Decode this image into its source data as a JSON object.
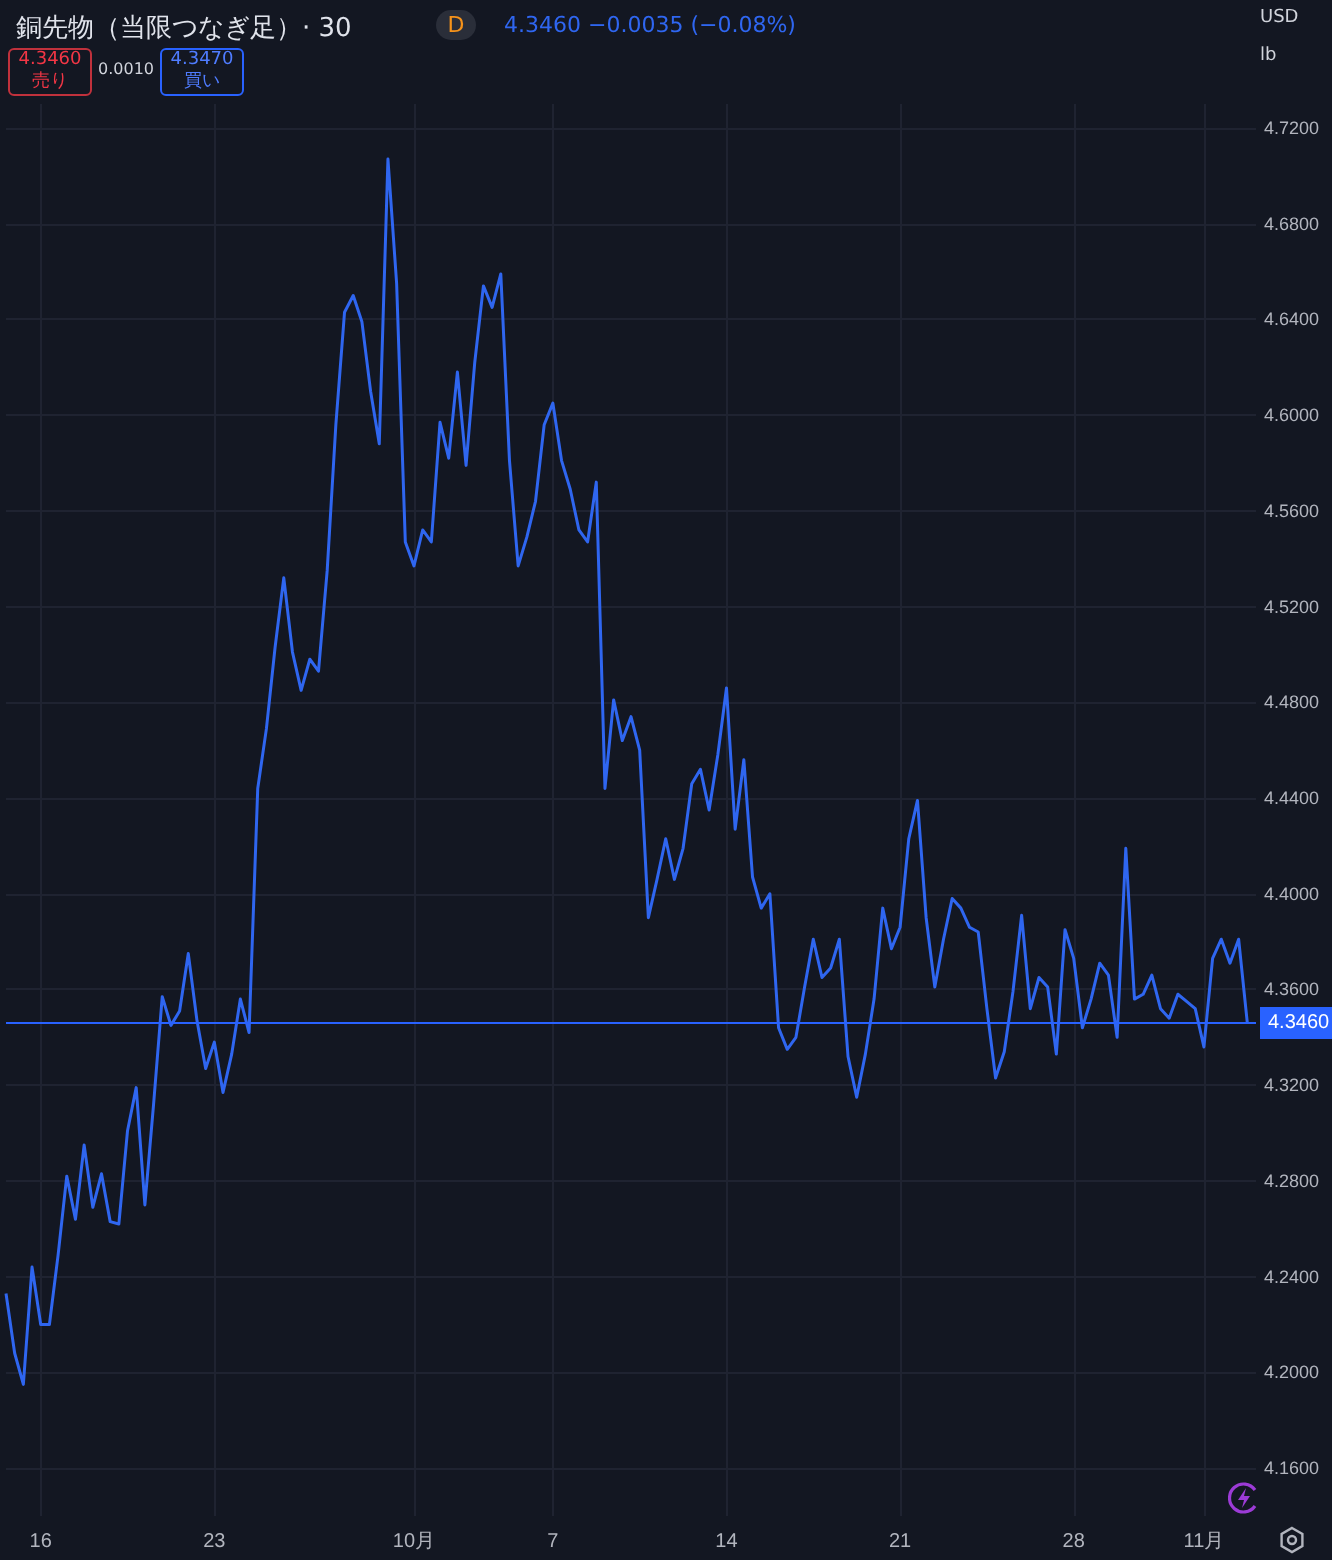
{
  "chart_data": {
    "type": "line",
    "title": "銅先物（当限つなぎ足）· 30",
    "subtitle": "4.3460 −0.0035 (−0.08%)",
    "annotations": [
      "4.3460 売り",
      "0.0010",
      "4.3470 買い",
      "USD",
      "lb",
      "D"
    ],
    "categories": [
      null,
      null,
      null,
      null,
      "16",
      null,
      null,
      null,
      null,
      null,
      null,
      null,
      null,
      null,
      null,
      null,
      null,
      null,
      null,
      null,
      null,
      null,
      null,
      null,
      "23",
      null,
      null,
      null,
      null,
      null,
      null,
      null,
      null,
      null,
      null,
      null,
      null,
      null,
      null,
      null,
      null,
      null,
      null,
      null,
      null,
      null,
      null,
      "10月",
      null,
      null,
      null,
      null,
      null,
      null,
      null,
      null,
      null,
      null,
      null,
      null,
      null,
      null,
      null,
      "7",
      null,
      null,
      null,
      null,
      null,
      null,
      null,
      null,
      null,
      null,
      null,
      null,
      null,
      null,
      null,
      null,
      null,
      null,
      null,
      "14",
      null,
      null,
      null,
      null,
      null,
      null,
      null,
      null,
      null,
      null,
      null,
      null,
      null,
      null,
      null,
      null,
      null,
      null,
      null,
      "21",
      null,
      null,
      null,
      null,
      null,
      null,
      null,
      null,
      null,
      null,
      null,
      null,
      null,
      null,
      null,
      null,
      null,
      null,
      null,
      "28",
      null,
      null,
      null,
      null,
      null,
      null,
      null,
      null,
      null,
      null,
      null,
      null,
      null,
      null,
      "11月",
      null,
      null,
      null,
      null,
      null,
      null
    ],
    "series": [
      {
        "color": "#2f66f0",
        "values": [
          4.233,
          4.208,
          4.195,
          4.244,
          4.22,
          4.22,
          4.249,
          4.282,
          4.264,
          4.295,
          4.269,
          4.283,
          4.263,
          4.262,
          4.301,
          4.319,
          4.27,
          4.312,
          4.357,
          4.345,
          4.351,
          4.375,
          4.347,
          4.327,
          4.338,
          4.317,
          4.333,
          4.356,
          4.342,
          4.444,
          4.469,
          4.503,
          4.532,
          4.501,
          4.485,
          4.498,
          4.493,
          4.535,
          4.596,
          4.643,
          4.65,
          4.639,
          4.61,
          4.588,
          4.707,
          4.655,
          4.547,
          4.537,
          4.552,
          4.547,
          4.597,
          4.582,
          4.618,
          4.579,
          4.622,
          4.654,
          4.645,
          4.659,
          4.581,
          4.537,
          4.549,
          4.564,
          4.596,
          4.605,
          4.581,
          4.569,
          4.552,
          4.547,
          4.572,
          4.444,
          4.481,
          4.464,
          4.474,
          4.46,
          4.39,
          4.406,
          4.423,
          4.406,
          4.419,
          4.446,
          4.452,
          4.435,
          4.458,
          4.486,
          4.427,
          4.456,
          4.407,
          4.394,
          4.4,
          4.344,
          4.335,
          4.34,
          4.361,
          4.381,
          4.365,
          4.369,
          4.381,
          4.332,
          4.315,
          4.333,
          4.356,
          4.394,
          4.377,
          4.386,
          4.423,
          4.439,
          4.39,
          4.361,
          4.381,
          4.398,
          4.394,
          4.386,
          4.384,
          4.352,
          4.323,
          4.334,
          4.359,
          4.391,
          4.352,
          4.365,
          4.361,
          4.333,
          4.385,
          4.373,
          4.344,
          4.356,
          4.371,
          4.366,
          4.34,
          4.419,
          4.356,
          4.358,
          4.366,
          4.352,
          4.348,
          4.358,
          4.355,
          4.352,
          4.336,
          4.373,
          4.381,
          4.371,
          4.381,
          4.346,
          null
        ]
      }
    ],
    "ylim": [
      4.14,
      4.73
    ],
    "yticks": [
      {
        "value": 4.16,
        "label": "4.1600"
      },
      {
        "value": 4.2,
        "label": "4.2000"
      },
      {
        "value": 4.24,
        "label": "4.2400"
      },
      {
        "value": 4.28,
        "label": "4.2800"
      },
      {
        "value": 4.32,
        "label": "4.3200"
      },
      {
        "value": 4.36,
        "label": "4.3600"
      },
      {
        "value": 4.4,
        "label": "4.4000"
      },
      {
        "value": 4.44,
        "label": "4.4400"
      },
      {
        "value": 4.48,
        "label": "4.4800"
      },
      {
        "value": 4.52,
        "label": "4.5200"
      },
      {
        "value": 4.56,
        "label": "4.5600"
      },
      {
        "value": 4.6,
        "label": "4.6000"
      },
      {
        "value": 4.64,
        "label": "4.6400"
      },
      {
        "value": 4.68,
        "label": "4.6800"
      },
      {
        "value": 4.72,
        "label": "4.7200"
      }
    ],
    "ref_lines": [
      {
        "axis": "y",
        "value": 4.346,
        "label": "4.3460",
        "color": "#2962ff"
      }
    ],
    "grid": true,
    "marker": "none"
  }
}
